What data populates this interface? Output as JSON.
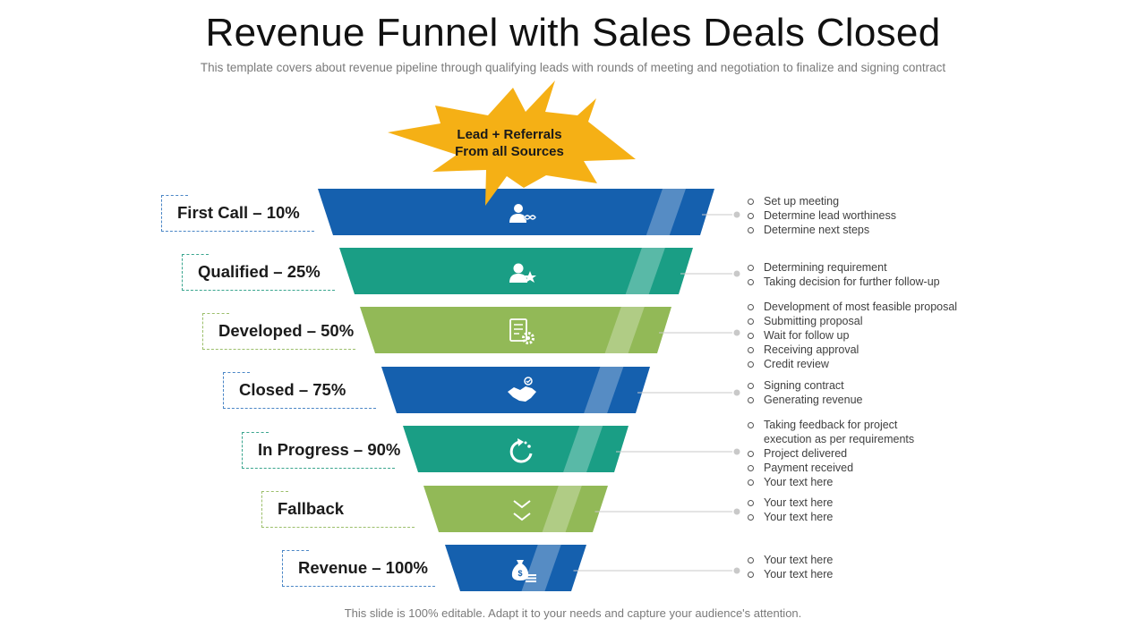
{
  "title": "Revenue Funnel with Sales Deals Closed",
  "subtitle": "This template covers about revenue pipeline through qualifying leads with rounds of meeting and negotiation to finalize and signing contract",
  "burst": {
    "line1": "Lead + Referrals",
    "line2": "From all  Sources",
    "color": "#F5B015"
  },
  "stages": [
    {
      "label": "First Call – 10%",
      "color": "#1560AE",
      "icon": "user-infinity-icon",
      "bullets": [
        {
          "text": "Set up meeting"
        },
        {
          "text": "Determine lead worthiness"
        },
        {
          "text": "Determine next steps"
        }
      ]
    },
    {
      "label": "Qualified – 25%",
      "color": "#1A9E85",
      "icon": "user-star-icon",
      "bullets": [
        {
          "text": "Determining requirement"
        },
        {
          "text": "Taking decision for further follow-up"
        }
      ]
    },
    {
      "label": "Developed – 50%",
      "color": "#92B957",
      "icon": "document-gear-icon",
      "bullets": [
        {
          "text": "Development  of most feasible proposal"
        },
        {
          "text": "Submitting proposal"
        },
        {
          "text": "Wait for follow  up"
        },
        {
          "text": "Receiving   approval"
        },
        {
          "text": "Credit review"
        }
      ]
    },
    {
      "label": "Closed – 75%",
      "color": "#1560AE",
      "icon": "handshake-icon",
      "bullets": [
        {
          "text": "Signing contract"
        },
        {
          "text": "Generating revenue"
        }
      ]
    },
    {
      "label": "In Progress – 90%",
      "color": "#1A9E85",
      "icon": "progress-arrow-icon",
      "bullets": [
        {
          "text": "Taking feedback for project"
        },
        {
          "text": "execution as per requirements",
          "cont": true
        },
        {
          "text": "Project delivered"
        },
        {
          "text": "Payment received"
        },
        {
          "text": "Your text here"
        }
      ]
    },
    {
      "label": "Fallback",
      "color": "#92B957",
      "icon": "double-chevron-down-icon",
      "bullets": [
        {
          "text": "Your text here"
        },
        {
          "text": "Your text here"
        }
      ]
    },
    {
      "label": "Revenue – 100%",
      "color": "#1560AE",
      "icon": "money-bag-icon",
      "bullets": [
        {
          "text": "Your text here"
        },
        {
          "text": "Your text here"
        }
      ]
    }
  ],
  "footer": "This slide is 100% editable. Adapt it to your needs and capture your audience's attention."
}
